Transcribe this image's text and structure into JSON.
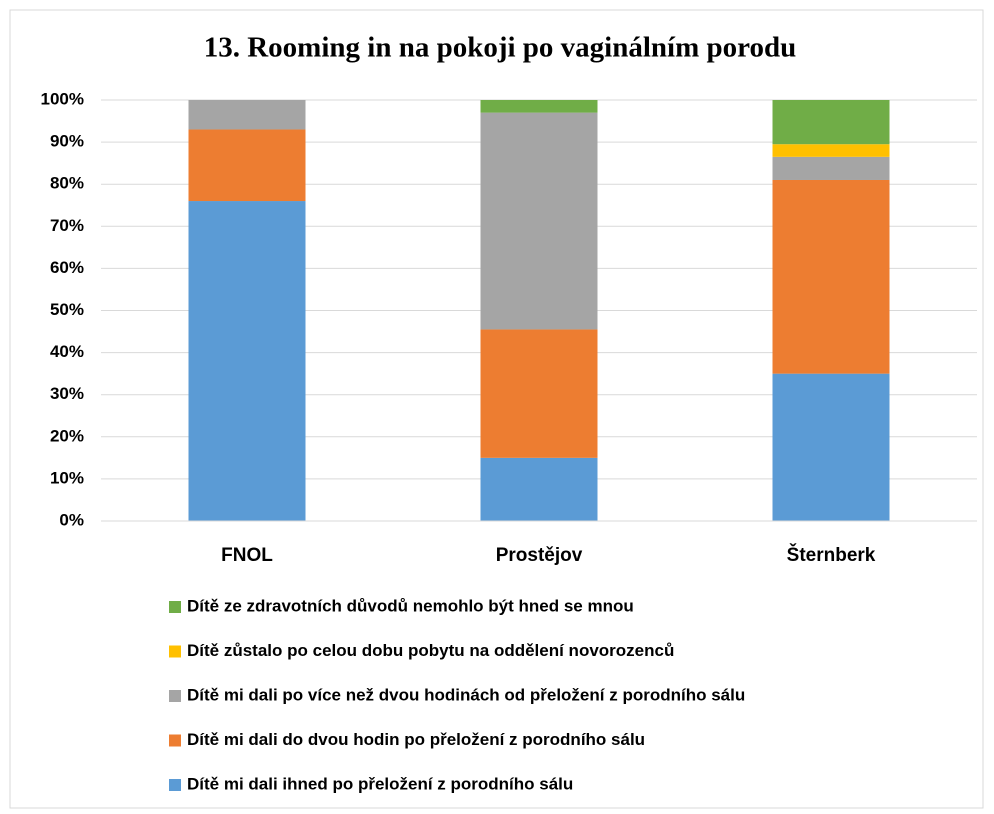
{
  "chart_data": {
    "type": "stacked_bar_100",
    "title": "13. Rooming in na pokoji po vaginálním porodu",
    "categories": [
      "FNOL",
      "Prostějov",
      "Šternberk"
    ],
    "series": [
      {
        "name": "Dítě mi dali ihned po přeložení z porodního sálu",
        "color": "#5b9bd5",
        "values": [
          76,
          15,
          35
        ]
      },
      {
        "name": "Dítě mi dali do dvou hodin po přeložení z porodního sálu",
        "color": "#ed7d31",
        "values": [
          17,
          30.5,
          46
        ]
      },
      {
        "name": "Dítě mi dali po více než dvou hodinách od přeložení z porodního sálu",
        "color": "#a5a5a5",
        "values": [
          7,
          51.5,
          5.5
        ]
      },
      {
        "name": "Dítě zůstalo po celou dobu pobytu na oddělení novorozenců",
        "color": "#ffc000",
        "values": [
          0,
          0,
          3
        ]
      },
      {
        "name": "Dítě ze zdravotních důvodů nemohlo být hned se mnou",
        "color": "#70ad47",
        "values": [
          0,
          3,
          10.5
        ]
      }
    ],
    "ylim": [
      0,
      100
    ],
    "yticks": [
      {
        "value": 0,
        "label": "0%"
      },
      {
        "value": 10,
        "label": "10%"
      },
      {
        "value": 20,
        "label": "20%"
      },
      {
        "value": 30,
        "label": "30%"
      },
      {
        "value": 40,
        "label": "40%"
      },
      {
        "value": 50,
        "label": "50%"
      },
      {
        "value": 60,
        "label": "60%"
      },
      {
        "value": 70,
        "label": "70%"
      },
      {
        "value": 80,
        "label": "80%"
      },
      {
        "value": 90,
        "label": "90%"
      },
      {
        "value": 100,
        "label": "100%"
      }
    ],
    "grid": true,
    "legend": "bottom"
  }
}
